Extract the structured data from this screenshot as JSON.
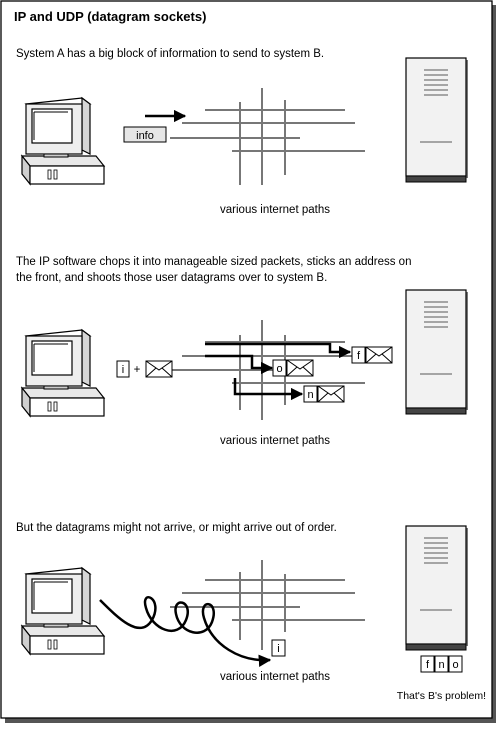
{
  "title": "IP and UDP (datagram sockets)",
  "panel1": {
    "caption": "System A has a big block of information to send to system B.",
    "packet_label": "info",
    "paths_label": "various internet paths"
  },
  "panel2": {
    "caption_line1": "The IP software chops it into manageable sized packets, sticks an address on",
    "caption_line2": "the front, and shoots those user datagrams over to system B.",
    "piece_label": "i",
    "plus_sign": "+",
    "packet_labels": [
      "o",
      "f",
      "n"
    ],
    "paths_label": "various internet paths"
  },
  "panel3": {
    "caption": "But the datagrams might not arrive, or might arrive out of order.",
    "lost_packet_label": "i",
    "received_packets": [
      "f",
      "n",
      "o"
    ],
    "paths_label": "various internet paths",
    "footer": "That's B's problem!"
  },
  "colors": {
    "frame": "#000000",
    "shadow": "#555555",
    "network_lines": "#777777",
    "server_fill": "#f2f2f2",
    "server_base": "#444444",
    "label_box_fill": "#e6e6e6"
  }
}
